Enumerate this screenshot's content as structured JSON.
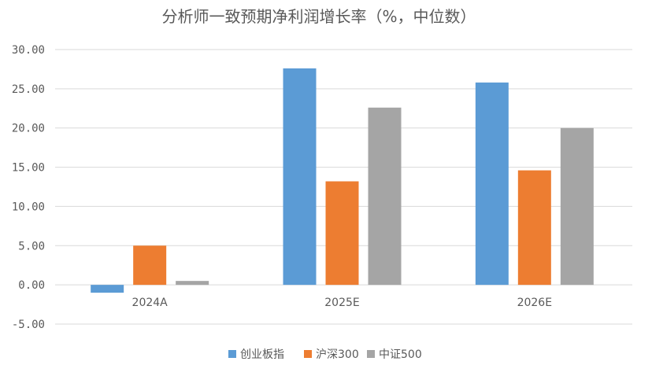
{
  "chart_data": {
    "type": "bar",
    "title": "分析师一致预期净利润增长率（%，中位数）",
    "categories": [
      "2024A",
      "2025E",
      "2026E"
    ],
    "series": [
      {
        "name": "创业板指",
        "color": "#5b9bd5",
        "values": [
          -1.0,
          27.6,
          25.8
        ]
      },
      {
        "name": "沪深300",
        "color": "#ed7d31",
        "values": [
          5.0,
          13.2,
          14.6
        ]
      },
      {
        "name": "中证500",
        "color": "#a5a5a5",
        "values": [
          0.5,
          22.6,
          20.0
        ]
      }
    ],
    "ylim": [
      -5,
      30
    ],
    "yticks": [
      "30.00",
      "25.00",
      "20.00",
      "15.00",
      "10.00",
      "5.00",
      "0.00",
      "-5.00"
    ],
    "legend_position": "bottom",
    "grid": true
  }
}
